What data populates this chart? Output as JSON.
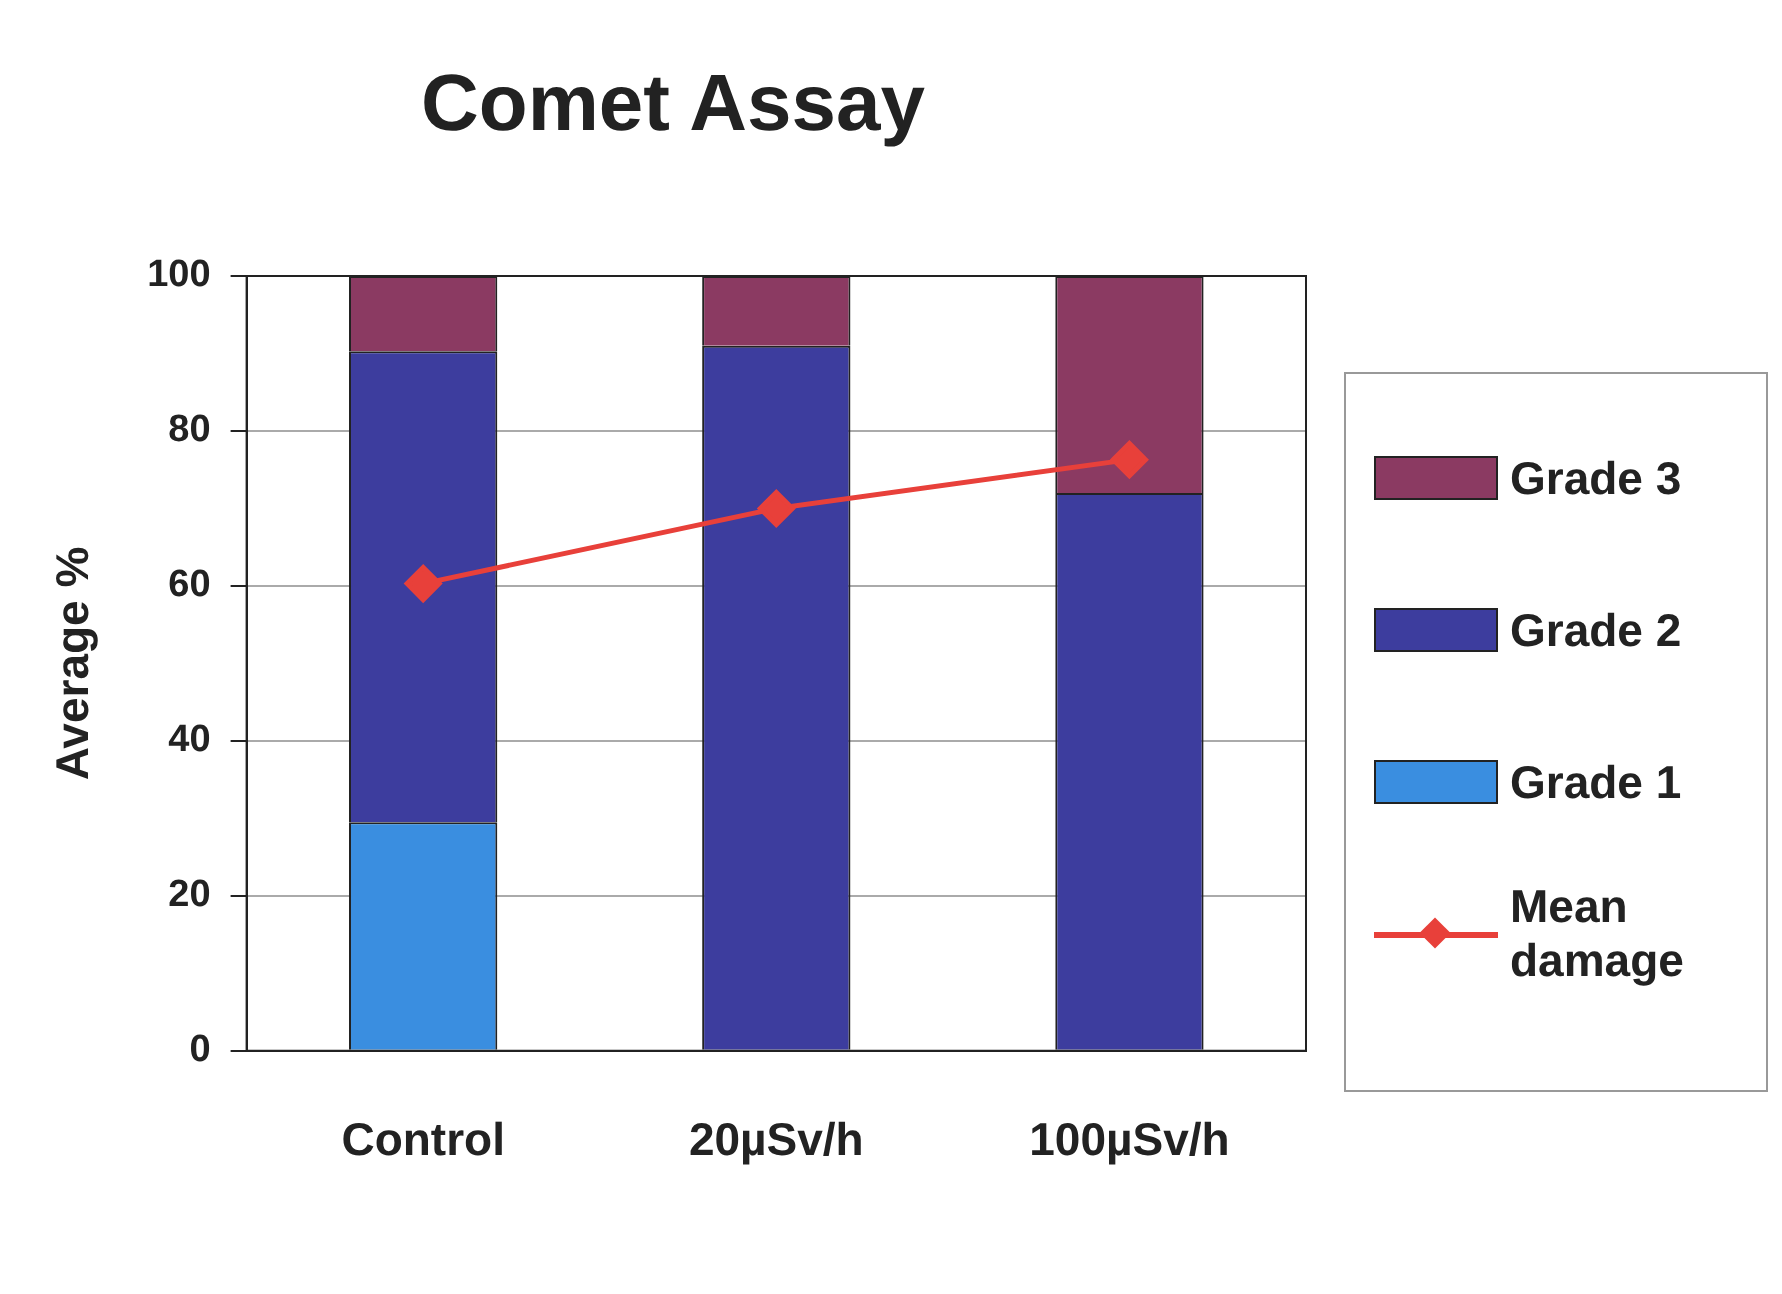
{
  "chart_data": {
    "type": "bar",
    "title": "Comet Assay",
    "ylabel": "Average %",
    "categories": [
      "Control",
      "20µSv/h",
      "100µSv/h"
    ],
    "stacked": true,
    "ylim": [
      0,
      100
    ],
    "yticks": [
      0,
      20,
      40,
      60,
      80,
      100
    ],
    "grid": "y",
    "legend": "right",
    "series": [
      {
        "name": "Grade 1",
        "color": "#3a8ee0",
        "values": [
          29.5,
          0,
          0
        ]
      },
      {
        "name": "Grade 2",
        "color": "#3d3d9e",
        "values": [
          60.8,
          91,
          72
        ]
      },
      {
        "name": "Grade 3",
        "color": "#8b3a62",
        "values": [
          9.7,
          9,
          28
        ]
      },
      {
        "name": "Mean damage",
        "type": "line",
        "color": "#e8403a",
        "marker": "diamond",
        "line_style": "solid",
        "values": [
          60.3,
          70,
          76.3
        ]
      }
    ]
  }
}
